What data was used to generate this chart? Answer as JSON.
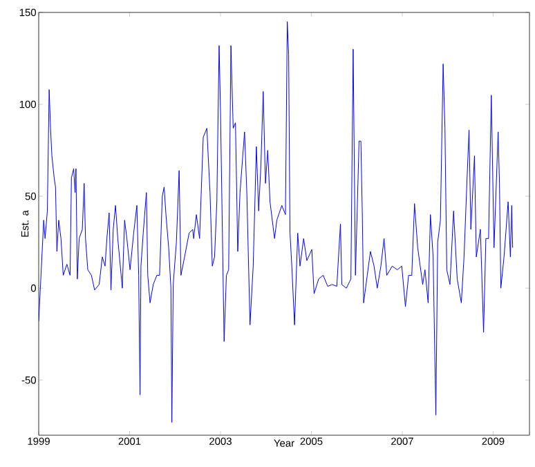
{
  "chart_data": {
    "type": "line",
    "xlabel": "Year",
    "ylabel": "Est. a",
    "color": "#0000ff",
    "xlim": [
      1999,
      2009.8
    ],
    "ylim": [
      -80,
      150
    ],
    "xticks": [
      1999,
      2001,
      2003,
      2005,
      2007,
      2009
    ],
    "yticks": [
      -50,
      0,
      50,
      100,
      150
    ],
    "x": [
      1999.0,
      1999.06,
      1999.11,
      1999.14,
      1999.19,
      1999.23,
      1999.26,
      1999.29,
      1999.34,
      1999.37,
      1999.4,
      1999.44,
      1999.49,
      1999.54,
      1999.62,
      1999.69,
      1999.72,
      1999.77,
      1999.8,
      1999.82,
      1999.85,
      1999.89,
      1999.96,
      2000.0,
      2000.03,
      2000.08,
      2000.16,
      2000.23,
      2000.33,
      2000.4,
      2000.46,
      2000.5,
      2000.55,
      2000.59,
      2000.64,
      2000.69,
      2000.74,
      2000.84,
      2000.89,
      2000.94,
      2001.01,
      2001.09,
      2001.16,
      2001.2,
      2001.23,
      2001.25,
      2001.3,
      2001.37,
      2001.4,
      2001.45,
      2001.52,
      2001.6,
      2001.66,
      2001.72,
      2001.76,
      2001.8,
      2001.86,
      2001.91,
      2001.93,
      2001.96,
      2002.03,
      2002.09,
      2002.13,
      2002.21,
      2002.31,
      2002.39,
      2002.41,
      2002.47,
      2002.54,
      2002.62,
      2002.7,
      2002.77,
      2002.82,
      2002.87,
      2002.92,
      2002.97,
      2003.0,
      2003.08,
      2003.13,
      2003.18,
      2003.23,
      2003.28,
      2003.33,
      2003.38,
      2003.43,
      2003.53,
      2003.58,
      2003.65,
      2003.72,
      2003.79,
      2003.84,
      2003.89,
      2003.94,
      2003.99,
      2004.04,
      2004.09,
      2004.19,
      2004.24,
      2004.35,
      2004.43,
      2004.47,
      2004.5,
      2004.53,
      2004.57,
      2004.63,
      2004.7,
      2004.75,
      2004.83,
      2004.9,
      2005.01,
      2005.06,
      2005.16,
      2005.26,
      2005.36,
      2005.46,
      2005.56,
      2005.64,
      2005.67,
      2005.77,
      2005.87,
      2005.92,
      2005.97,
      2006.05,
      2006.09,
      2006.12,
      2006.15,
      2006.23,
      2006.3,
      2006.38,
      2006.45,
      2006.53,
      2006.6,
      2006.66,
      2006.78,
      2006.89,
      2006.99,
      2007.07,
      2007.14,
      2007.21,
      2007.27,
      2007.34,
      2007.45,
      2007.5,
      2007.57,
      2007.62,
      2007.68,
      2007.74,
      2007.78,
      2007.84,
      2007.9,
      2007.94,
      2007.98,
      2008.05,
      2008.13,
      2008.21,
      2008.3,
      2008.36,
      2008.43,
      2008.47,
      2008.51,
      2008.59,
      2008.63,
      2008.72,
      2008.79,
      2008.84,
      2008.9,
      2008.96,
      2009.02,
      2009.11,
      2009.14,
      2009.17,
      2009.24,
      2009.33,
      2009.38,
      2009.41,
      2009.43
    ],
    "values": [
      -18,
      12,
      37,
      27,
      42,
      108,
      87,
      72,
      60,
      55,
      20,
      37,
      27,
      7,
      13,
      7,
      60,
      65,
      52,
      65,
      5,
      27,
      32,
      57,
      27,
      10,
      7,
      -1,
      2,
      17,
      12,
      27,
      41,
      -1,
      32,
      45,
      27,
      0,
      37,
      27,
      10,
      30,
      45,
      7,
      -58,
      12,
      30,
      52,
      7,
      -8,
      2,
      7,
      7,
      50,
      55,
      40,
      22,
      0,
      -73,
      2,
      25,
      64,
      7,
      17,
      30,
      32,
      27,
      40,
      27,
      82,
      87,
      52,
      12,
      17,
      47,
      132,
      97,
      -29,
      7,
      10,
      132,
      87,
      90,
      20,
      52,
      85,
      52,
      -20,
      12,
      77,
      42,
      67,
      107,
      57,
      75,
      47,
      27,
      37,
      45,
      40,
      145,
      127,
      30,
      12,
      -20,
      30,
      12,
      27,
      15,
      21,
      -3,
      5,
      7,
      1,
      2,
      1,
      35,
      2,
      0,
      5,
      130,
      7,
      80,
      80,
      42,
      -8,
      7,
      20,
      12,
      0,
      12,
      27,
      7,
      12,
      10,
      12,
      -10,
      7,
      7,
      46,
      22,
      2,
      10,
      -8,
      40,
      17,
      -69,
      25,
      37,
      122,
      87,
      10,
      2,
      42,
      5,
      -8,
      17,
      62,
      86,
      32,
      72,
      17,
      32,
      -24,
      27,
      27,
      105,
      22,
      85,
      57,
      0,
      17,
      47,
      17,
      45,
      22
    ]
  }
}
